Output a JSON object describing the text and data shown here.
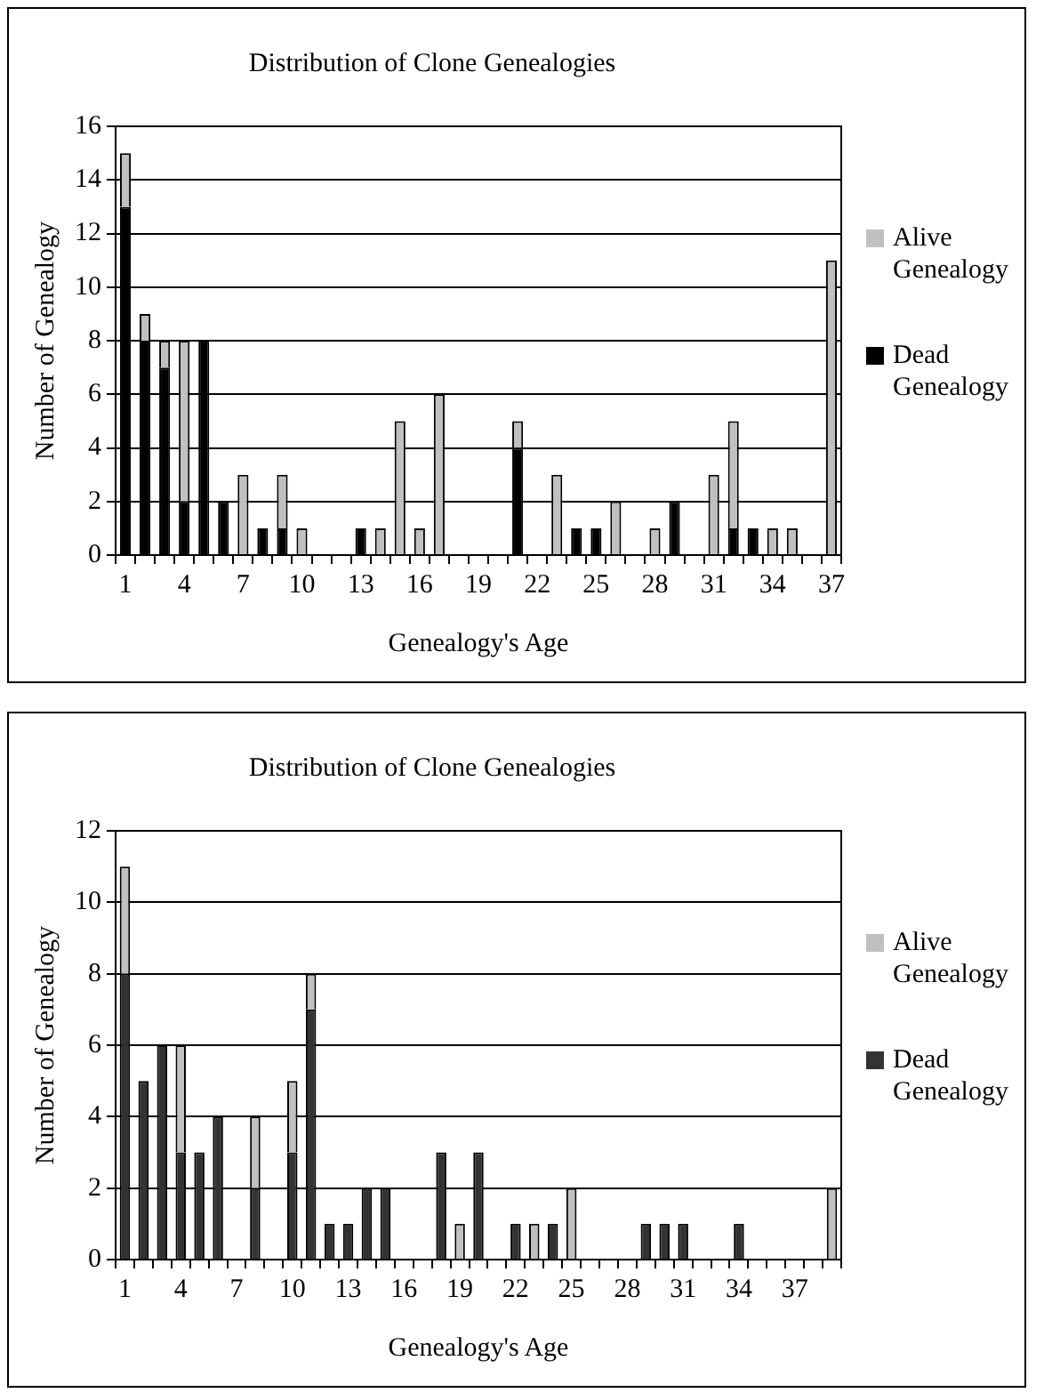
{
  "chart_data": [
    {
      "type": "bar",
      "title": "Distribution of Clone Genealogies",
      "xlabel": "Genealogy's Age",
      "ylabel": "Number of Genealogy",
      "stacked": true,
      "grid": "y",
      "legend": "right",
      "ylim": [
        0,
        16
      ],
      "yticks": [
        0,
        2,
        4,
        6,
        8,
        10,
        12,
        14,
        16
      ],
      "categories": [
        "1",
        null,
        null,
        "4",
        null,
        null,
        "7",
        null,
        null,
        "10",
        null,
        null,
        "13",
        null,
        null,
        "16",
        null,
        null,
        "19",
        null,
        null,
        "22",
        null,
        null,
        "25",
        null,
        null,
        "28",
        null,
        null,
        "31",
        null,
        null,
        "34",
        null,
        null,
        "37"
      ],
      "series": [
        {
          "name": "Dead Genealogy",
          "color": "#000000",
          "values": [
            13,
            8,
            7,
            2,
            8,
            2,
            0,
            1,
            1,
            0,
            0,
            0,
            1,
            0,
            0,
            0,
            0,
            0,
            0,
            0,
            4,
            0,
            0,
            1,
            1,
            0,
            0,
            0,
            2,
            0,
            0,
            1,
            1,
            0,
            0,
            0,
            0
          ]
        },
        {
          "name": "Alive Genealogy",
          "color": "#c0c0c0",
          "values": [
            2,
            1,
            1,
            6,
            0,
            0,
            3,
            0,
            2,
            1,
            0,
            0,
            0,
            1,
            5,
            1,
            6,
            0,
            0,
            0,
            1,
            0,
            3,
            0,
            0,
            2,
            0,
            1,
            0,
            0,
            3,
            4,
            0,
            1,
            1,
            0,
            11
          ]
        }
      ]
    },
    {
      "type": "bar",
      "title": "Distribution of Clone Genealogies",
      "xlabel": "Genealogy's Age",
      "ylabel": "Number of Genealogy",
      "stacked": true,
      "grid": "y",
      "legend": "right",
      "ylim": [
        0,
        12
      ],
      "yticks": [
        0,
        2,
        4,
        6,
        8,
        10,
        12
      ],
      "categories": [
        "1",
        null,
        null,
        "4",
        null,
        null,
        "7",
        null,
        null,
        "10",
        null,
        null,
        "13",
        null,
        null,
        "16",
        null,
        null,
        "19",
        null,
        null,
        "22",
        null,
        null,
        "25",
        null,
        null,
        "28",
        null,
        null,
        "31",
        null,
        null,
        "34",
        null,
        null,
        "37",
        null,
        null
      ],
      "series": [
        {
          "name": "Dead Genealogy",
          "color": "#333333",
          "values": [
            8,
            5,
            6,
            3,
            3,
            4,
            0,
            2,
            0,
            3,
            7,
            1,
            1,
            2,
            2,
            0,
            0,
            3,
            0,
            3,
            0,
            1,
            0,
            1,
            0,
            0,
            0,
            0,
            1,
            1,
            1,
            0,
            0,
            1,
            0,
            0,
            0,
            0,
            0
          ]
        },
        {
          "name": "Alive Genealogy",
          "color": "#c0c0c0",
          "values": [
            3,
            0,
            0,
            3,
            0,
            0,
            0,
            2,
            0,
            2,
            1,
            0,
            0,
            0,
            0,
            0,
            0,
            0,
            1,
            0,
            0,
            0,
            1,
            0,
            2,
            0,
            0,
            0,
            0,
            0,
            0,
            0,
            0,
            0,
            0,
            0,
            0,
            0,
            2
          ]
        }
      ]
    }
  ]
}
